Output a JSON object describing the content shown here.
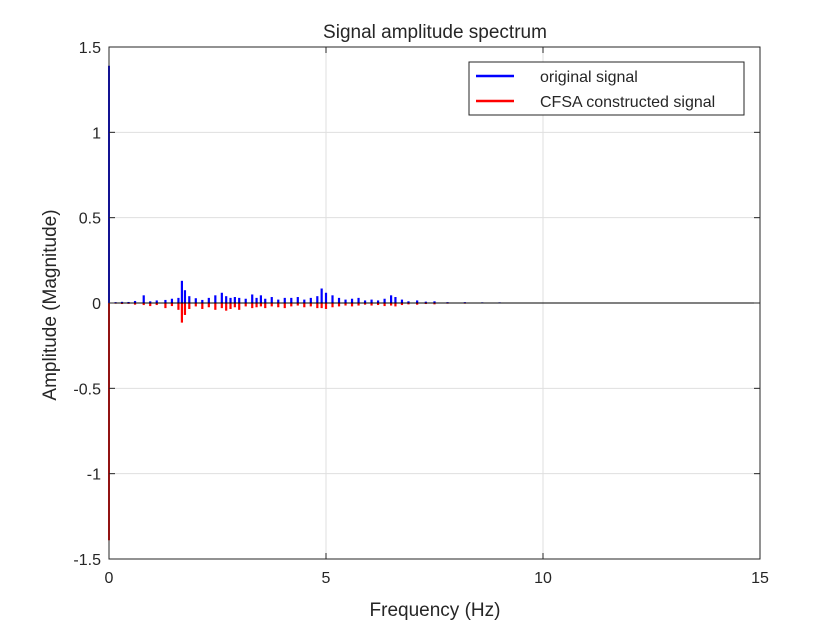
{
  "chart_data": {
    "type": "bar",
    "title": "Signal amplitude spectrum",
    "xlabel": "Frequency (Hz)",
    "ylabel": "Amplitude (Magnitude)",
    "xlim": [
      0,
      15
    ],
    "ylim": [
      -1.5,
      1.5
    ],
    "xticks": [
      0,
      5,
      10,
      15
    ],
    "xtick_labels": [
      "0",
      "5",
      "10",
      "15"
    ],
    "yticks": [
      -1.5,
      -1,
      -0.5,
      0,
      0.5,
      1,
      1.5
    ],
    "ytick_labels": [
      "-1.5",
      "-1",
      "-0.5",
      "0",
      "0.5",
      "1",
      "1.5"
    ],
    "grid": true,
    "legend_position": "top-right",
    "x": [
      0.0,
      0.15,
      0.3,
      0.45,
      0.6,
      0.8,
      0.95,
      1.1,
      1.3,
      1.45,
      1.6,
      1.68,
      1.75,
      1.85,
      2.0,
      2.15,
      2.3,
      2.45,
      2.6,
      2.7,
      2.8,
      2.9,
      3.0,
      3.15,
      3.3,
      3.4,
      3.5,
      3.6,
      3.75,
      3.9,
      4.05,
      4.2,
      4.35,
      4.5,
      4.65,
      4.8,
      4.9,
      5.0,
      5.15,
      5.3,
      5.45,
      5.6,
      5.75,
      5.9,
      6.05,
      6.2,
      6.35,
      6.5,
      6.6,
      6.75,
      6.9,
      7.1,
      7.3,
      7.5,
      7.8,
      8.2,
      8.6,
      9.0,
      9.5,
      10.0,
      11.0,
      12.0,
      13.0,
      14.0
    ],
    "series": [
      {
        "name": "original signal",
        "color": "#0000ff",
        "direction": "up",
        "values": [
          1.39,
          0.005,
          0.007,
          0.006,
          0.012,
          0.045,
          0.01,
          0.015,
          0.018,
          0.025,
          0.03,
          0.13,
          0.075,
          0.04,
          0.028,
          0.018,
          0.03,
          0.045,
          0.06,
          0.04,
          0.03,
          0.035,
          0.03,
          0.025,
          0.05,
          0.03,
          0.045,
          0.025,
          0.035,
          0.02,
          0.03,
          0.03,
          0.035,
          0.02,
          0.03,
          0.04,
          0.085,
          0.06,
          0.045,
          0.03,
          0.02,
          0.025,
          0.03,
          0.015,
          0.02,
          0.015,
          0.025,
          0.045,
          0.035,
          0.02,
          0.01,
          0.015,
          0.008,
          0.01,
          0.005,
          0.005,
          0.004,
          0.004,
          0.003,
          0.003,
          0.002,
          0.002,
          0.002,
          0.002
        ]
      },
      {
        "name": "CFSA constructed signal",
        "color": "#ff0000",
        "direction": "down",
        "values": [
          1.39,
          0.004,
          0.006,
          0.005,
          0.01,
          0.012,
          0.018,
          0.012,
          0.03,
          0.018,
          0.04,
          0.115,
          0.07,
          0.035,
          0.02,
          0.035,
          0.025,
          0.04,
          0.03,
          0.045,
          0.035,
          0.025,
          0.04,
          0.02,
          0.03,
          0.025,
          0.02,
          0.03,
          0.02,
          0.025,
          0.03,
          0.02,
          0.015,
          0.025,
          0.02,
          0.03,
          0.03,
          0.035,
          0.025,
          0.02,
          0.015,
          0.02,
          0.015,
          0.01,
          0.015,
          0.012,
          0.018,
          0.015,
          0.02,
          0.012,
          0.008,
          0.01,
          0.006,
          0.008,
          0.004,
          0.004,
          0.003,
          0.003,
          0.002,
          0.002,
          0.002,
          0.002,
          0.002,
          0.002
        ]
      }
    ]
  }
}
